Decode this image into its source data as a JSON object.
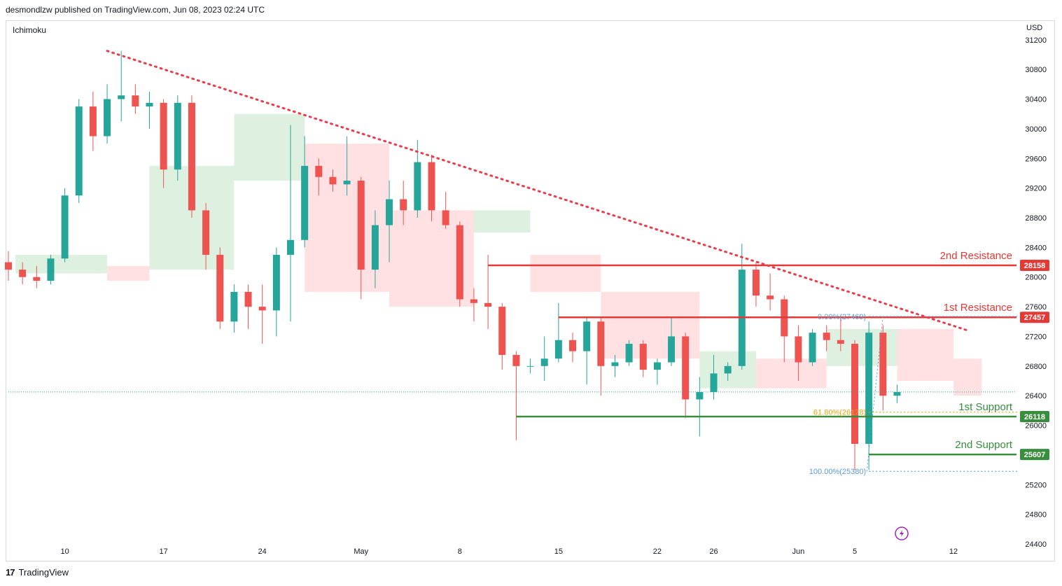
{
  "header": {
    "publisher": "desmondlzw published on TradingView.com, Jun 08, 2023 02:24 UTC",
    "indicator": "Ichimoku",
    "currency": "USD",
    "brand": "TradingView"
  },
  "colors": {
    "up": "#26a69a",
    "down": "#ef5350",
    "resistance": "#e53935",
    "support": "#388e3c",
    "fib_618": "#f0a30a",
    "fib_0": "#5b9bd5",
    "cloud_green": "#c8e6c9",
    "cloud_red": "#ffcdd2",
    "trendline": "#e53e4d"
  },
  "chart_data": {
    "type": "candlestick",
    "symbol_currency": "USD",
    "y_ticks": [
      31200,
      30800,
      30400,
      30000,
      29600,
      29200,
      28800,
      28400,
      28000,
      27600,
      27200,
      26800,
      26400,
      26000,
      25600,
      25200,
      24800,
      24400
    ],
    "ylim": [
      24400,
      31200
    ],
    "x_ticks": [
      "10",
      "17",
      "24",
      "May",
      "8",
      "15",
      "22",
      "26",
      "Jun",
      "5",
      "12"
    ],
    "levels": [
      {
        "name": "2nd Resistance",
        "value": 28158,
        "label": "28158",
        "kind": "resistance"
      },
      {
        "name": "1st Resistance",
        "value": 27457,
        "label": "27457",
        "kind": "resistance"
      },
      {
        "name": "1st Support",
        "value": 26118,
        "label": "26118",
        "kind": "support"
      },
      {
        "name": "2nd Support",
        "value": 25607,
        "label": "25607",
        "kind": "support"
      }
    ],
    "fibonacci": [
      {
        "label": "0.00%(27469)",
        "value": 27469
      },
      {
        "label": "61.80%(26178)",
        "value": 26178
      },
      {
        "label": "100.00%(25380)",
        "value": 25380
      }
    ],
    "trendline": {
      "from": {
        "x": "Apr 13",
        "y": 31050
      },
      "to": {
        "x": "Jun 13",
        "y": 27280
      }
    },
    "candles": [
      {
        "x": "Apr 06",
        "o": 28200,
        "h": 28350,
        "l": 27950,
        "c": 28100
      },
      {
        "x": "Apr 07",
        "o": 28100,
        "h": 28200,
        "l": 27900,
        "c": 28000
      },
      {
        "x": "Apr 08",
        "o": 28000,
        "h": 28150,
        "l": 27850,
        "c": 27950
      },
      {
        "x": "Apr 09",
        "o": 27950,
        "h": 28300,
        "l": 27900,
        "c": 28250
      },
      {
        "x": "Apr 10",
        "o": 28250,
        "h": 29200,
        "l": 28200,
        "c": 29100
      },
      {
        "x": "Apr 11",
        "o": 29100,
        "h": 30400,
        "l": 29000,
        "c": 30300
      },
      {
        "x": "Apr 12",
        "o": 30300,
        "h": 30500,
        "l": 29700,
        "c": 29900
      },
      {
        "x": "Apr 13",
        "o": 29900,
        "h": 30600,
        "l": 29800,
        "c": 30400
      },
      {
        "x": "Apr 14",
        "o": 30400,
        "h": 31050,
        "l": 30100,
        "c": 30450
      },
      {
        "x": "Apr 15",
        "o": 30450,
        "h": 30600,
        "l": 30200,
        "c": 30300
      },
      {
        "x": "Apr 16",
        "o": 30300,
        "h": 30500,
        "l": 30000,
        "c": 30350
      },
      {
        "x": "Apr 17",
        "o": 30350,
        "h": 30400,
        "l": 29200,
        "c": 29450
      },
      {
        "x": "Apr 18",
        "o": 29450,
        "h": 30450,
        "l": 29300,
        "c": 30350
      },
      {
        "x": "Apr 19",
        "o": 30350,
        "h": 30450,
        "l": 28800,
        "c": 28900
      },
      {
        "x": "Apr 20",
        "o": 28900,
        "h": 29000,
        "l": 28100,
        "c": 28300
      },
      {
        "x": "Apr 21",
        "o": 28300,
        "h": 28400,
        "l": 27300,
        "c": 27400
      },
      {
        "x": "Apr 22",
        "o": 27400,
        "h": 27900,
        "l": 27250,
        "c": 27800
      },
      {
        "x": "Apr 23",
        "o": 27800,
        "h": 27900,
        "l": 27300,
        "c": 27600
      },
      {
        "x": "Apr 24",
        "o": 27600,
        "h": 27900,
        "l": 27100,
        "c": 27550
      },
      {
        "x": "Apr 25",
        "o": 27550,
        "h": 28400,
        "l": 27200,
        "c": 28300
      },
      {
        "x": "Apr 26",
        "o": 28300,
        "h": 30050,
        "l": 27400,
        "c": 28500
      },
      {
        "x": "Apr 27",
        "o": 28500,
        "h": 29900,
        "l": 28400,
        "c": 29500
      },
      {
        "x": "Apr 28",
        "o": 29500,
        "h": 29600,
        "l": 29100,
        "c": 29350
      },
      {
        "x": "Apr 29",
        "o": 29350,
        "h": 29450,
        "l": 29150,
        "c": 29250
      },
      {
        "x": "Apr 30",
        "o": 29250,
        "h": 29900,
        "l": 29100,
        "c": 29300
      },
      {
        "x": "May 01",
        "o": 29300,
        "h": 29350,
        "l": 27700,
        "c": 28100
      },
      {
        "x": "May 02",
        "o": 28100,
        "h": 28900,
        "l": 27850,
        "c": 28700
      },
      {
        "x": "May 03",
        "o": 28700,
        "h": 29300,
        "l": 28200,
        "c": 29050
      },
      {
        "x": "May 04",
        "o": 29050,
        "h": 29300,
        "l": 28700,
        "c": 28900
      },
      {
        "x": "May 05",
        "o": 28900,
        "h": 29850,
        "l": 28800,
        "c": 29550
      },
      {
        "x": "May 06",
        "o": 29550,
        "h": 29650,
        "l": 28750,
        "c": 28900
      },
      {
        "x": "May 07",
        "o": 28900,
        "h": 29150,
        "l": 28650,
        "c": 28700
      },
      {
        "x": "May 08",
        "o": 28700,
        "h": 28750,
        "l": 27600,
        "c": 27700
      },
      {
        "x": "May 09",
        "o": 27700,
        "h": 27850,
        "l": 27400,
        "c": 27650
      },
      {
        "x": "May 10",
        "o": 27650,
        "h": 28300,
        "l": 27300,
        "c": 27600
      },
      {
        "x": "May 11",
        "o": 27600,
        "h": 27650,
        "l": 26750,
        "c": 26950
      },
      {
        "x": "May 12",
        "o": 26950,
        "h": 27000,
        "l": 25800,
        "c": 26800
      },
      {
        "x": "May 13",
        "o": 26800,
        "h": 26900,
        "l": 26700,
        "c": 26800
      },
      {
        "x": "May 14",
        "o": 26800,
        "h": 27200,
        "l": 26600,
        "c": 26900
      },
      {
        "x": "May 15",
        "o": 26900,
        "h": 27650,
        "l": 26850,
        "c": 27150
      },
      {
        "x": "May 16",
        "o": 27150,
        "h": 27250,
        "l": 26850,
        "c": 27000
      },
      {
        "x": "May 17",
        "o": 27000,
        "h": 27450,
        "l": 26550,
        "c": 27400
      },
      {
        "x": "May 18",
        "o": 27400,
        "h": 27450,
        "l": 26400,
        "c": 26800
      },
      {
        "x": "May 19",
        "o": 26800,
        "h": 26950,
        "l": 26650,
        "c": 26850
      },
      {
        "x": "May 20",
        "o": 26850,
        "h": 27150,
        "l": 26800,
        "c": 27100
      },
      {
        "x": "May 21",
        "o": 27100,
        "h": 27150,
        "l": 26650,
        "c": 26750
      },
      {
        "x": "May 22",
        "o": 26750,
        "h": 26900,
        "l": 26550,
        "c": 26850
      },
      {
        "x": "May 23",
        "o": 26850,
        "h": 27450,
        "l": 26800,
        "c": 27200
      },
      {
        "x": "May 24",
        "o": 27200,
        "h": 27250,
        "l": 26100,
        "c": 26350
      },
      {
        "x": "May 25",
        "o": 26350,
        "h": 26650,
        "l": 25850,
        "c": 26450
      },
      {
        "x": "May 26",
        "o": 26450,
        "h": 26950,
        "l": 26350,
        "c": 26700
      },
      {
        "x": "May 27",
        "o": 26700,
        "h": 26850,
        "l": 26600,
        "c": 26800
      },
      {
        "x": "May 28",
        "o": 26800,
        "h": 28450,
        "l": 26750,
        "c": 28100
      },
      {
        "x": "May 29",
        "o": 28100,
        "h": 28200,
        "l": 27600,
        "c": 27750
      },
      {
        "x": "May 30",
        "o": 27750,
        "h": 28050,
        "l": 27550,
        "c": 27700
      },
      {
        "x": "May 31",
        "o": 27700,
        "h": 27750,
        "l": 26850,
        "c": 27200
      },
      {
        "x": "Jun 01",
        "o": 27200,
        "h": 27350,
        "l": 26600,
        "c": 26850
      },
      {
        "x": "Jun 02",
        "o": 26850,
        "h": 27300,
        "l": 26800,
        "c": 27250
      },
      {
        "x": "Jun 03",
        "o": 27250,
        "h": 27350,
        "l": 27000,
        "c": 27150
      },
      {
        "x": "Jun 04",
        "o": 27150,
        "h": 27450,
        "l": 27000,
        "c": 27100
      },
      {
        "x": "Jun 05",
        "o": 27100,
        "h": 27150,
        "l": 25400,
        "c": 25750
      },
      {
        "x": "Jun 06",
        "o": 25750,
        "h": 27400,
        "l": 25400,
        "c": 27250
      },
      {
        "x": "Jun 07",
        "o": 27250,
        "h": 27350,
        "l": 26200,
        "c": 26400
      },
      {
        "x": "Jun 08",
        "o": 26400,
        "h": 26550,
        "l": 26300,
        "c": 26450
      }
    ]
  }
}
